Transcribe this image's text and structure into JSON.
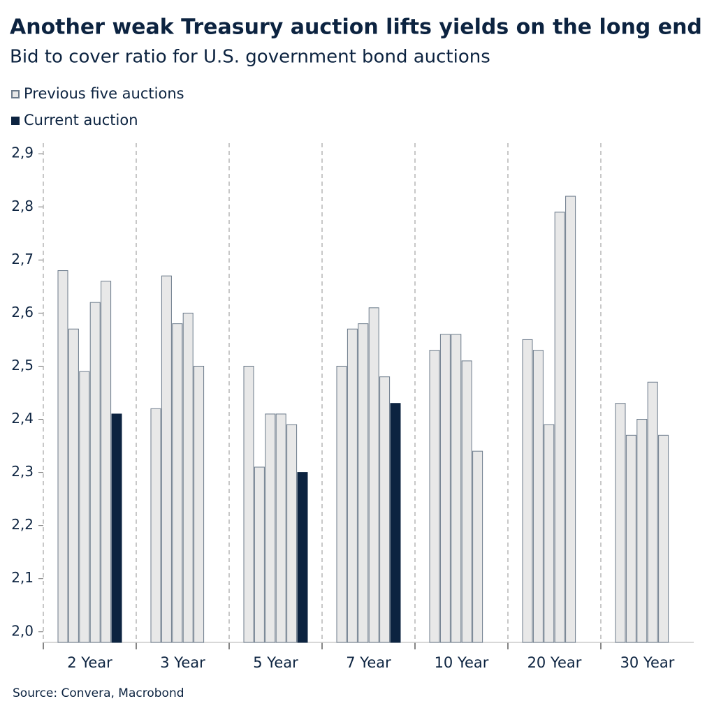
{
  "chart_data": {
    "type": "grouped-bar",
    "title": "Another weak Treasury auction lifts yields on the long end",
    "subtitle": "Bid to cover ratio for U.S. government bond auctions",
    "source": "Source: Convera, Macrobond",
    "categories": [
      "2 Year",
      "3 Year",
      "5 Year",
      "7 Year",
      "10 Year",
      "20 Year",
      "30 Year"
    ],
    "series": [
      {
        "name": "Previous five auctions",
        "color": "#e8e8e8",
        "stroke": "#6b7a8a",
        "values": [
          [
            2.68,
            2.57,
            2.49,
            2.62,
            2.66
          ],
          [
            2.42,
            2.67,
            2.58,
            2.6,
            2.5
          ],
          [
            2.5,
            2.31,
            2.41,
            2.41,
            2.39
          ],
          [
            2.5,
            2.57,
            2.58,
            2.61,
            2.48
          ],
          [
            2.53,
            2.56,
            2.56,
            2.51,
            2.34
          ],
          [
            2.55,
            2.53,
            2.39,
            2.79,
            2.82
          ],
          [
            2.43,
            2.37,
            2.4,
            2.47,
            2.37
          ]
        ]
      },
      {
        "name": "Current auction",
        "color": "#0c2340",
        "values": [
          2.41,
          null,
          2.3,
          2.43,
          null,
          null,
          null
        ]
      }
    ],
    "ylim": [
      1.98,
      2.92
    ],
    "yticks": [
      {
        "value": 2.0,
        "label": "2,0"
      },
      {
        "value": 2.1,
        "label": "2,1"
      },
      {
        "value": 2.2,
        "label": "2,2"
      },
      {
        "value": 2.3,
        "label": "2,3"
      },
      {
        "value": 2.4,
        "label": "2,4"
      },
      {
        "value": 2.5,
        "label": "2,5"
      },
      {
        "value": 2.6,
        "label": "2,6"
      },
      {
        "value": 2.7,
        "label": "2,7"
      },
      {
        "value": 2.8,
        "label": "2,8"
      },
      {
        "value": 2.9,
        "label": "2,9"
      }
    ]
  }
}
